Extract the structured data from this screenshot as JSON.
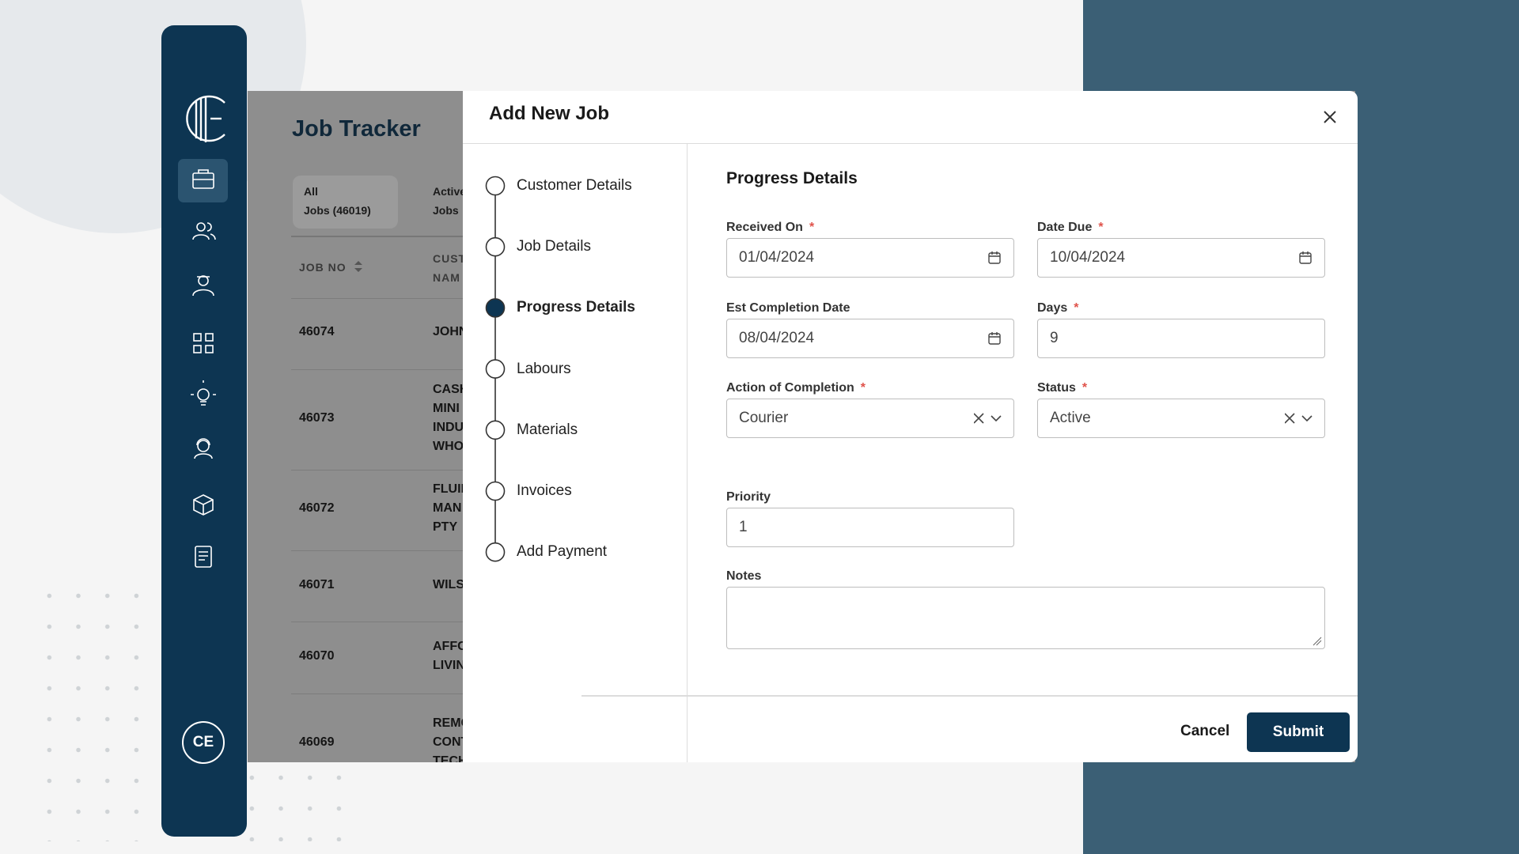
{
  "sidebar": {
    "avatar": "CE"
  },
  "background": {
    "title": "Job Tracker",
    "tabs": [
      {
        "lines": [
          "All",
          "Jobs (46019)"
        ]
      },
      {
        "lines": [
          "Active",
          "Jobs"
        ]
      }
    ],
    "columns": [
      {
        "lines": [
          "JOB NO"
        ]
      },
      {
        "lines": [
          "CUST",
          "NAM"
        ]
      }
    ],
    "rows": [
      {
        "job_no": "46074",
        "customer": [
          "JOHN"
        ]
      },
      {
        "job_no": "46073",
        "customer": [
          "CASH",
          "MINI",
          "INDU",
          "WHO"
        ]
      },
      {
        "job_no": "46072",
        "customer": [
          "FLUII",
          "MAN",
          "PTY"
        ]
      },
      {
        "job_no": "46071",
        "customer": [
          "WILS"
        ]
      },
      {
        "job_no": "46070",
        "customer": [
          "AFFC",
          "LIVIN"
        ]
      },
      {
        "job_no": "46069",
        "customer": [
          "REMC",
          "CONT",
          "TECH"
        ]
      }
    ]
  },
  "modal": {
    "title": "Add New Job",
    "steps": [
      "Customer Details",
      "Job Details",
      "Progress Details",
      "Labours",
      "Materials",
      "Invoices",
      "Add Payment"
    ],
    "active_step": 2,
    "form": {
      "heading": "Progress Details",
      "required_mark": "*",
      "fields": [
        {
          "label": "Received On",
          "required": true,
          "kind": "date",
          "value": "01/04/2024"
        },
        {
          "label": "Date Due",
          "required": true,
          "kind": "date",
          "value": "10/04/2024"
        },
        {
          "label": "Est Completion Date",
          "required": false,
          "kind": "date",
          "value": "08/04/2024"
        },
        {
          "label": "Days",
          "required": true,
          "kind": "text",
          "value": "9"
        },
        {
          "label": "Action of Completion",
          "required": true,
          "kind": "select",
          "value": "Courier"
        },
        {
          "label": "Status",
          "required": true,
          "kind": "select",
          "value": "Active"
        },
        {
          "label": "Priority",
          "required": false,
          "kind": "text",
          "value": "1"
        },
        {
          "label": "Notes",
          "required": false,
          "kind": "textarea"
        }
      ]
    },
    "buttons": {
      "cancel": "Cancel",
      "submit": "Submit"
    }
  }
}
